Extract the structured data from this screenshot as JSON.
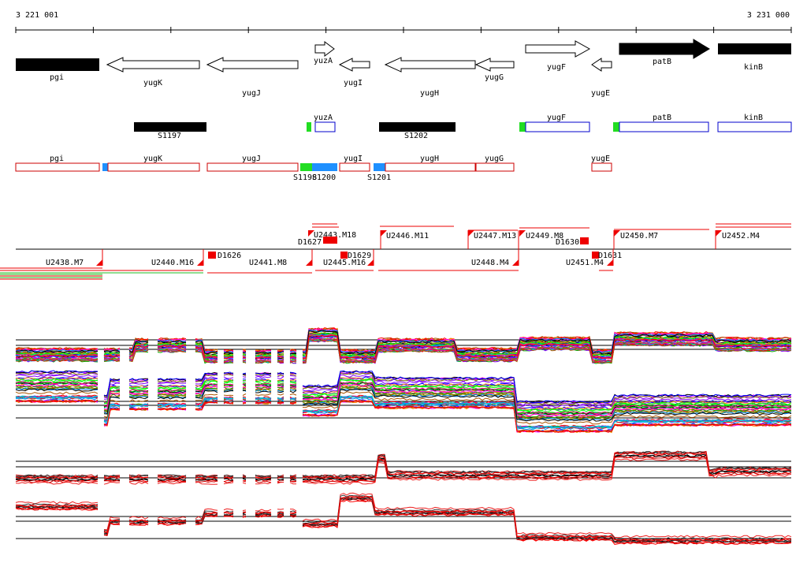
{
  "ruler": {
    "start_label": "3 221 001",
    "end_label": "3 231 000"
  },
  "genes": [
    {
      "label": "pgi",
      "dir": "none",
      "fill": "#000000",
      "label_row": "below"
    },
    {
      "label": "yugK",
      "dir": "left",
      "fill": "#ffffff",
      "label_row": "below"
    },
    {
      "label": "yugJ",
      "dir": "left",
      "fill": "#ffffff",
      "label_row": "below2"
    },
    {
      "label": "yuzA",
      "dir": "right",
      "fill": "#ffffff",
      "label_row": "below"
    },
    {
      "label": "yugI",
      "dir": "left",
      "fill": "#ffffff",
      "label_row": "below2"
    },
    {
      "label": "yugH",
      "dir": "left",
      "fill": "#ffffff",
      "label_row": "below2"
    },
    {
      "label": "yugG",
      "dir": "left",
      "fill": "#ffffff",
      "label_row": "below"
    },
    {
      "label": "yugF",
      "dir": "right",
      "fill": "#ffffff",
      "label_row": "below"
    },
    {
      "label": "yugE",
      "dir": "left",
      "fill": "#ffffff",
      "label_row": "below2"
    },
    {
      "label": "patB",
      "dir": "right",
      "fill": "#000000",
      "label_row": "inside"
    },
    {
      "label": "kinB",
      "dir": "none",
      "fill": "#000000",
      "label_row": "below"
    }
  ],
  "forward_segments": {
    "black": [
      "S1197",
      "S1202"
    ],
    "boxes": [
      "yuzA",
      "yugF",
      "patB",
      "kinB"
    ]
  },
  "reverse_segments": {
    "boxes": [
      "pgi",
      "yugK",
      "yugJ",
      "yugI",
      "yugH",
      "yugG",
      "yugE"
    ],
    "colored": [
      "S1198",
      "S1200",
      "S1201"
    ]
  },
  "upper_features": [
    "U2446.M11",
    "U2447.M13",
    "U2449.M8",
    "U2450.M7",
    "U2452.M4",
    "D1630",
    "U2443.M18",
    "D1627"
  ],
  "lower_features": [
    "U2438.M7",
    "U2440.M16",
    "D1626",
    "U2441.M8",
    "U2445.M16",
    "D1629",
    "U2448.M4",
    "U2451.M4",
    "D1631"
  ],
  "colors": {
    "forward_box_stroke": "#0000cc",
    "reverse_box_stroke": "#cc0000",
    "marker_green": "#22dd22",
    "marker_blue": "#1e90ff",
    "feature_red": "#ee0000"
  }
}
